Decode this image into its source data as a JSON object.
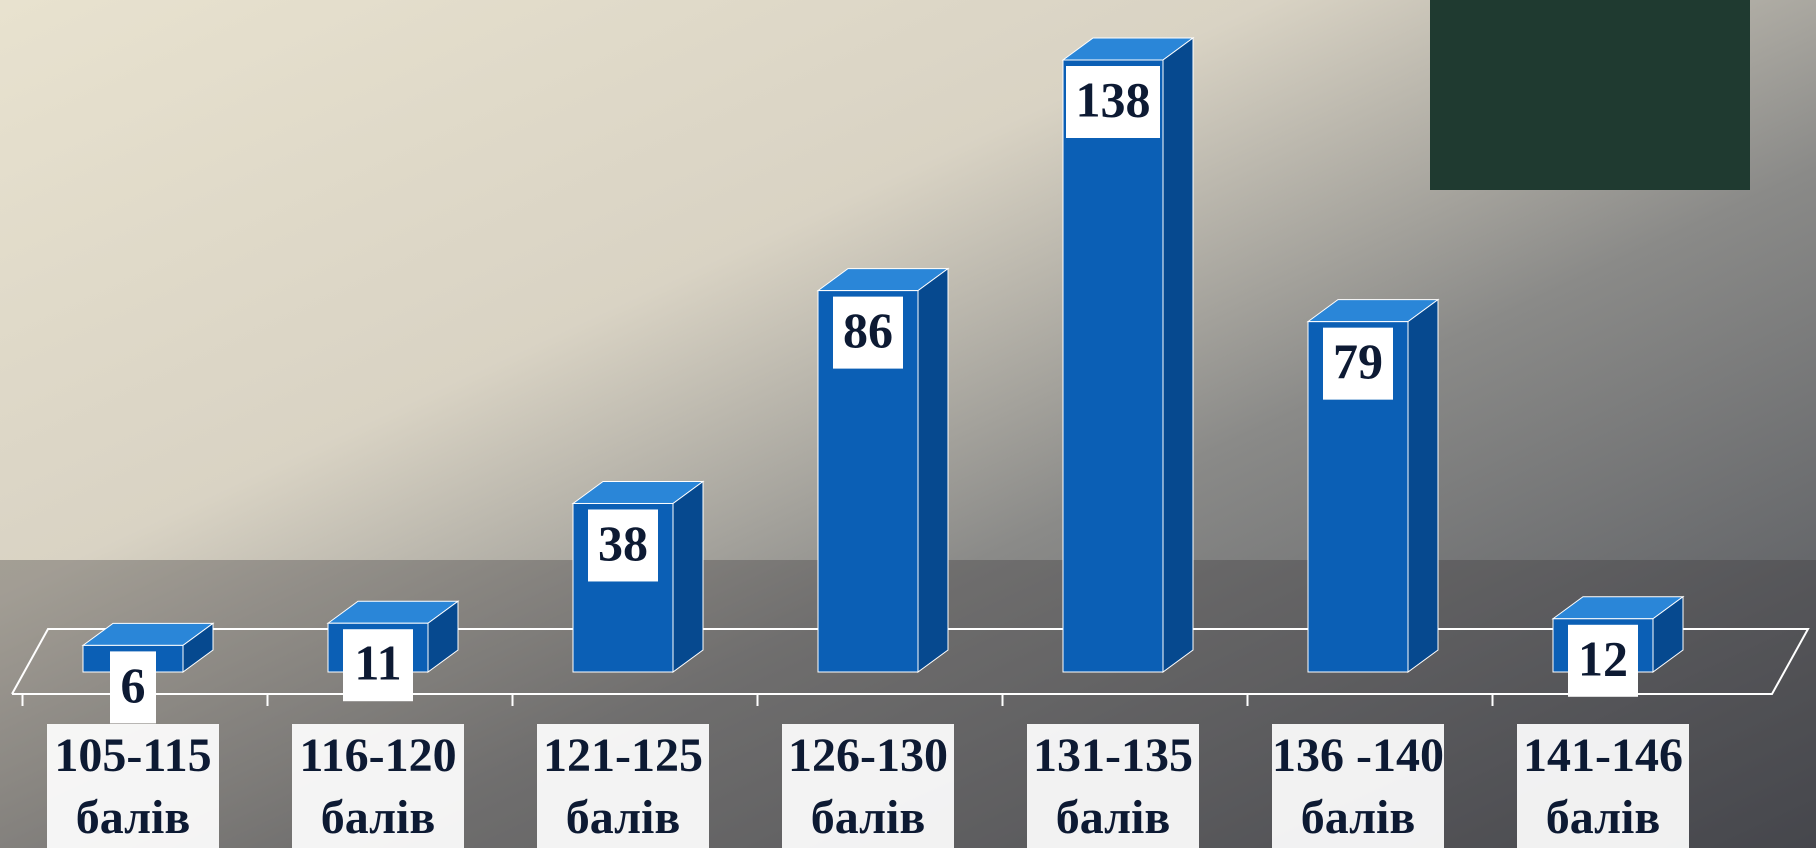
{
  "chart_data": {
    "type": "bar3d",
    "categories": [
      "105-115 балів",
      "116-120 балів",
      "121-125 балів",
      "126-130 балів",
      "131-135 балів",
      "136 -140 балів",
      "141-146 балів"
    ],
    "values": [
      6,
      11,
      38,
      86,
      138,
      79,
      12
    ],
    "color": "#0b5fb5"
  }
}
